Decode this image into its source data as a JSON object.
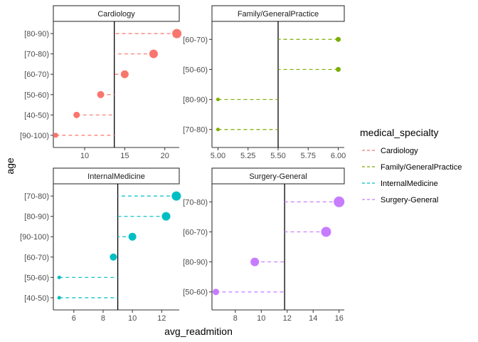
{
  "chart_data": {
    "type": "scatter",
    "style": "dot-plot with dashed segments to a vertical reference line",
    "xlabel": "avg_readmition",
    "ylabel": "age",
    "legend": {
      "title": "medical_specialty",
      "placement": "right",
      "entries": [
        {
          "name": "Cardiology",
          "color": "#F8766D"
        },
        {
          "name": "Family/GeneralPractice",
          "color": "#7CAE00"
        },
        {
          "name": "InternalMedicine",
          "color": "#00BFC4"
        },
        {
          "name": "Surgery-General",
          "color": "#C77CFF"
        }
      ]
    },
    "facets": [
      {
        "name": "Cardiology",
        "color": "#F8766D",
        "xlim": [
          6.1,
          21.8
        ],
        "xticks": [
          10,
          15,
          20
        ],
        "xtick_labels": [
          "10",
          "15",
          "20"
        ],
        "reference_line": 13.7,
        "categories": [
          "[80-90)",
          "[70-80)",
          "[60-70)",
          "[50-60)",
          "[40-50)",
          "[90-100)"
        ],
        "values": [
          21.5,
          18.6,
          15.0,
          12.0,
          9.0,
          6.4
        ],
        "sizes": [
          6.5,
          6.0,
          5.5,
          5.0,
          4.5,
          3.5
        ]
      },
      {
        "name": "Family/GeneralPractice",
        "color": "#7CAE00",
        "xlim": [
          4.95,
          6.05
        ],
        "xticks": [
          5.0,
          5.25,
          5.5,
          5.75,
          6.0
        ],
        "xtick_labels": [
          "5.00",
          "5.25",
          "5.50",
          "5.75",
          "6.00"
        ],
        "reference_line": 5.5,
        "categories": [
          "[60-70)",
          "[50-60)",
          "[80-90)",
          "[70-80)"
        ],
        "values": [
          6.0,
          6.0,
          5.0,
          5.0
        ],
        "sizes": [
          3.5,
          3.5,
          2.5,
          2.5
        ]
      },
      {
        "name": "InternalMedicine",
        "color": "#00BFC4",
        "xlim": [
          4.6,
          13.2
        ],
        "xticks": [
          6,
          8,
          10,
          12
        ],
        "xtick_labels": [
          "6",
          "8",
          "10",
          "12"
        ],
        "reference_line": 9.0,
        "categories": [
          "[70-80)",
          "[80-90)",
          "[90-100)",
          "[60-70)",
          "[50-60)",
          "[40-50)"
        ],
        "values": [
          13.0,
          12.3,
          10.0,
          8.7,
          5.0,
          5.0
        ],
        "sizes": [
          6.5,
          6.0,
          5.5,
          5.0,
          2.5,
          2.5
        ]
      },
      {
        "name": "Surgery-General",
        "color": "#C77CFF",
        "xlim": [
          6.2,
          16.4
        ],
        "xticks": [
          8,
          10,
          12,
          14,
          16
        ],
        "xtick_labels": [
          "8",
          "10",
          "12",
          "14",
          "16"
        ],
        "reference_line": 11.8,
        "categories": [
          "[70-80)",
          "[60-70)",
          "[80-90)",
          "[50-60)"
        ],
        "values": [
          16.0,
          15.0,
          9.5,
          6.5
        ],
        "sizes": [
          7.5,
          7.0,
          6.0,
          4.5
        ]
      }
    ]
  }
}
